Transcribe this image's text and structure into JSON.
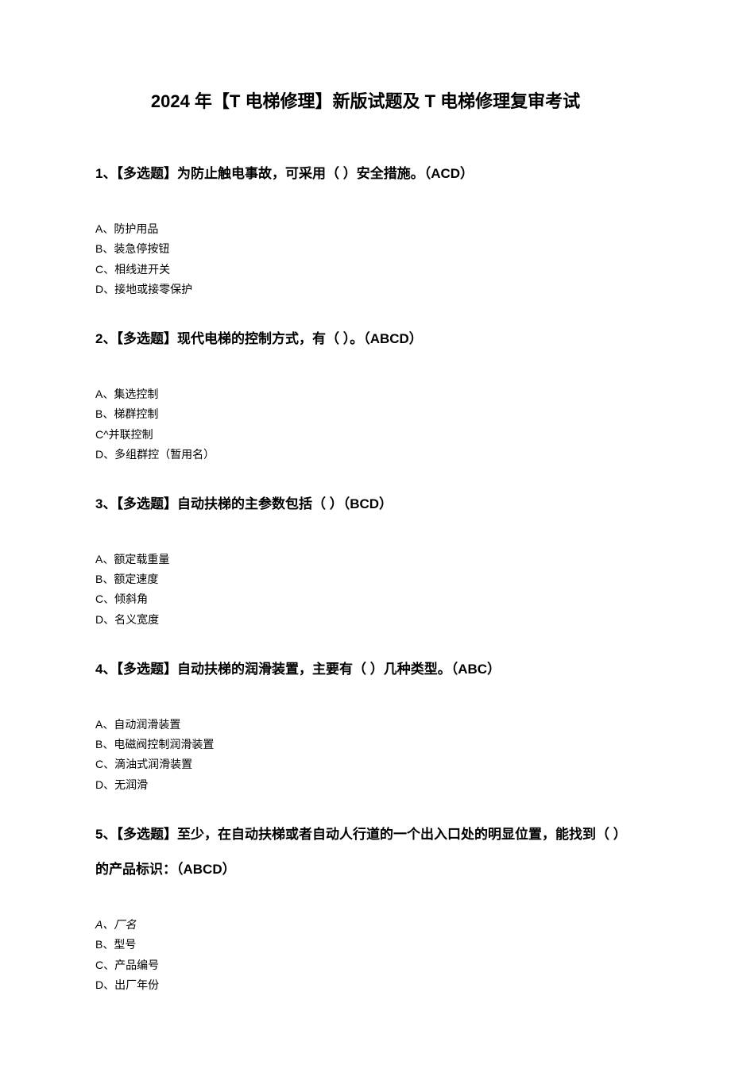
{
  "title": "2024 年【T 电梯修理】新版试题及 T 电梯修理复审考试",
  "questions": [
    {
      "number": "1、",
      "text": "【多选题】为防止触电事故，可采用（ ）安全措施。（ACD）",
      "options": [
        {
          "label": "A、防护用品",
          "italic": false
        },
        {
          "label": "B、装急停按钮",
          "italic": false
        },
        {
          "label": "C、相线进开关",
          "italic": false
        },
        {
          "label": "D、接地或接零保护",
          "italic": false
        }
      ]
    },
    {
      "number": "2、",
      "text": "【多选题】现代电梯的控制方式，有（ ）。（ABCD）",
      "options": [
        {
          "label": "A、集选控制",
          "italic": false
        },
        {
          "label": "B、梯群控制",
          "italic": false
        },
        {
          "label": "C^并联控制",
          "italic": false
        },
        {
          "label": "D、多组群控（暂用名）",
          "italic": false
        }
      ]
    },
    {
      "number": "3、",
      "text": "【多选题】自动扶梯的主参数包括（ ）（BCD）",
      "options": [
        {
          "label": "A、额定载重量",
          "italic": false
        },
        {
          "label": "B、额定速度",
          "italic": false
        },
        {
          "label": "C、倾斜角",
          "italic": false
        },
        {
          "label": "D、名义宽度",
          "italic": false
        }
      ]
    },
    {
      "number": "4、",
      "text": "【多选题】自动扶梯的润滑装置，主要有（ ）几种类型。（ABC）",
      "options": [
        {
          "label": "A、自动润滑装置",
          "italic": false
        },
        {
          "label": "B、电磁阀控制润滑装置",
          "italic": false
        },
        {
          "label": "C、滴油式润滑装置",
          "italic": false
        },
        {
          "label": "D、无润滑",
          "italic": false
        }
      ]
    },
    {
      "number": "5、",
      "text": "【多选题】至少，在自动扶梯或者自动人行道的一个出入口处的明显位置，能找到（ ）的产品标识：（ABCD）",
      "options": [
        {
          "label": "A、厂名",
          "italic": true
        },
        {
          "label": "B、型号",
          "italic": false
        },
        {
          "label": "C、产品编号",
          "italic": false
        },
        {
          "label": "D、出厂年份",
          "italic": false
        }
      ]
    }
  ]
}
